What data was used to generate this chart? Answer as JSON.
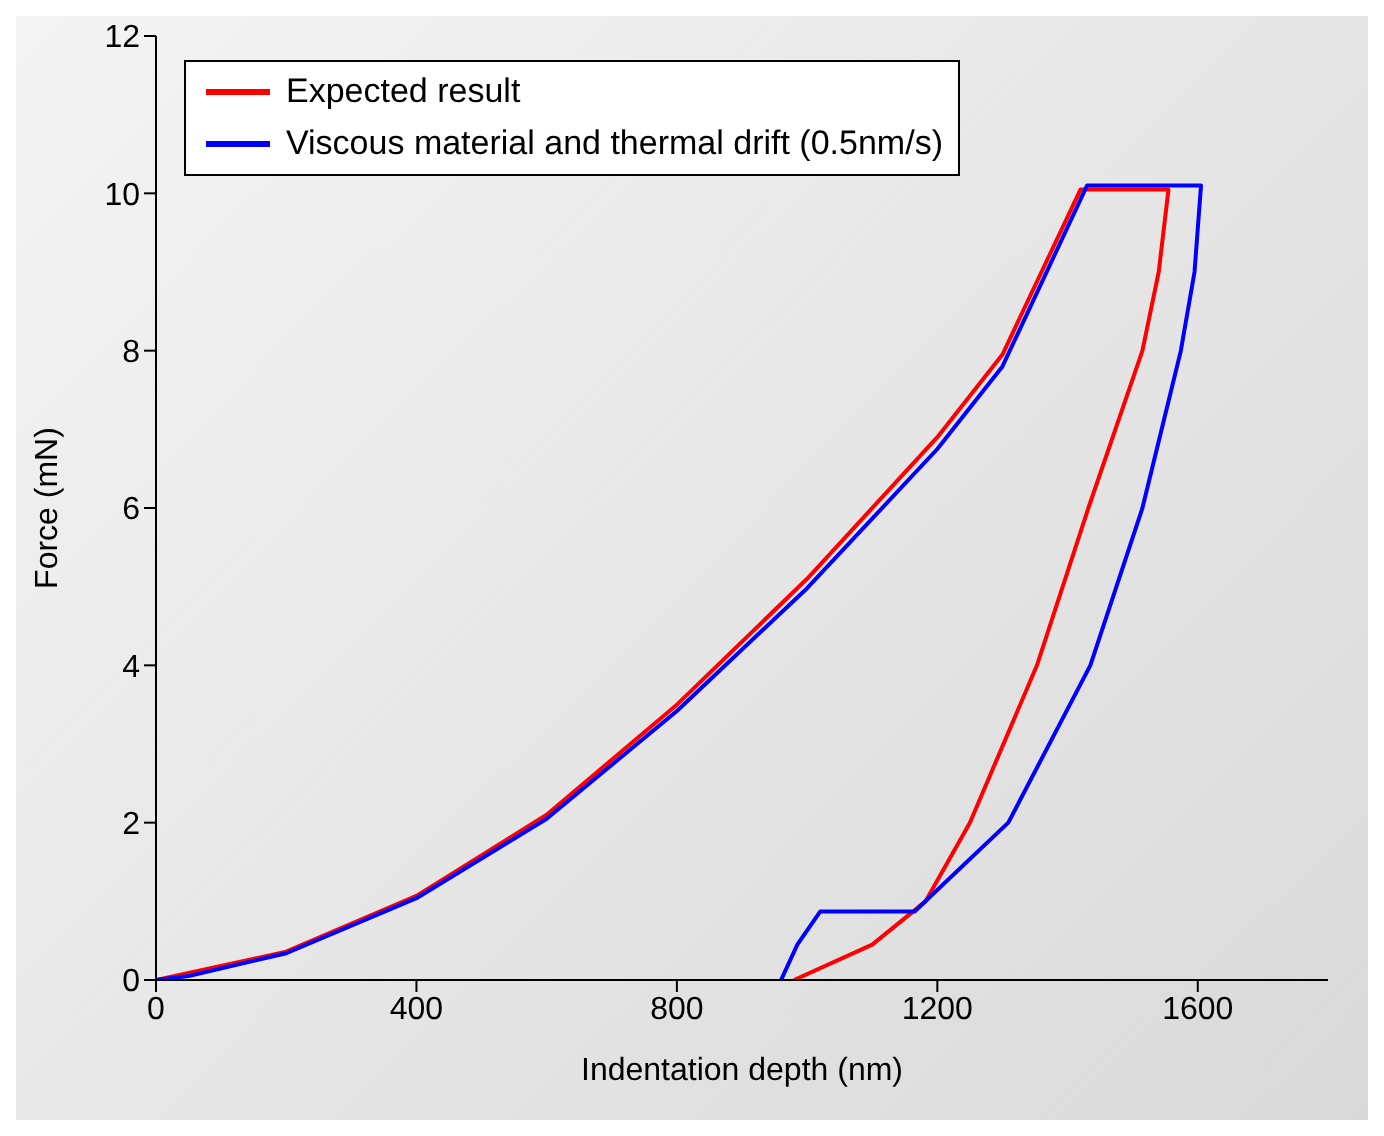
{
  "chart_data": {
    "type": "line",
    "xlabel": "Indentation depth (nm)",
    "ylabel": "Force (mN)",
    "xlim": [
      0,
      1800
    ],
    "xticks": [
      0,
      400,
      800,
      1200,
      1600
    ],
    "ylim": [
      0,
      12
    ],
    "yticks": [
      0,
      2,
      4,
      6,
      8,
      10,
      12
    ],
    "grid": false,
    "legend": "top left",
    "marker": "none",
    "line_style": "solid",
    "series": [
      {
        "name": "Expected result",
        "color": "#ff0000",
        "x": [
          0,
          200,
          400,
          600,
          800,
          1000,
          1200,
          1300,
          1420,
          1555,
          1540,
          1515,
          1432,
          1353,
          1250,
          1182,
          1100,
          980
        ],
        "values": [
          0,
          0.36,
          1.07,
          2.1,
          3.5,
          5.1,
          6.9,
          7.95,
          10.05,
          10.05,
          9,
          8,
          6,
          4,
          2,
          1,
          0.45,
          0
        ]
      },
      {
        "name": "Viscous material and thermal drift (0.5nm/s)",
        "color": "#0000ff",
        "x": [
          0,
          50,
          200,
          400,
          600,
          800,
          1000,
          1200,
          1300,
          1430,
          1605,
          1595,
          1574,
          1515,
          1435,
          1309,
          1165,
          1020,
          985,
          960
        ],
        "values": [
          0,
          0.05,
          0.34,
          1.04,
          2.05,
          3.42,
          4.98,
          6.75,
          7.8,
          10.1,
          10.1,
          9,
          8,
          6,
          4,
          2,
          0.87,
          0.87,
          0.45,
          0
        ]
      }
    ]
  }
}
